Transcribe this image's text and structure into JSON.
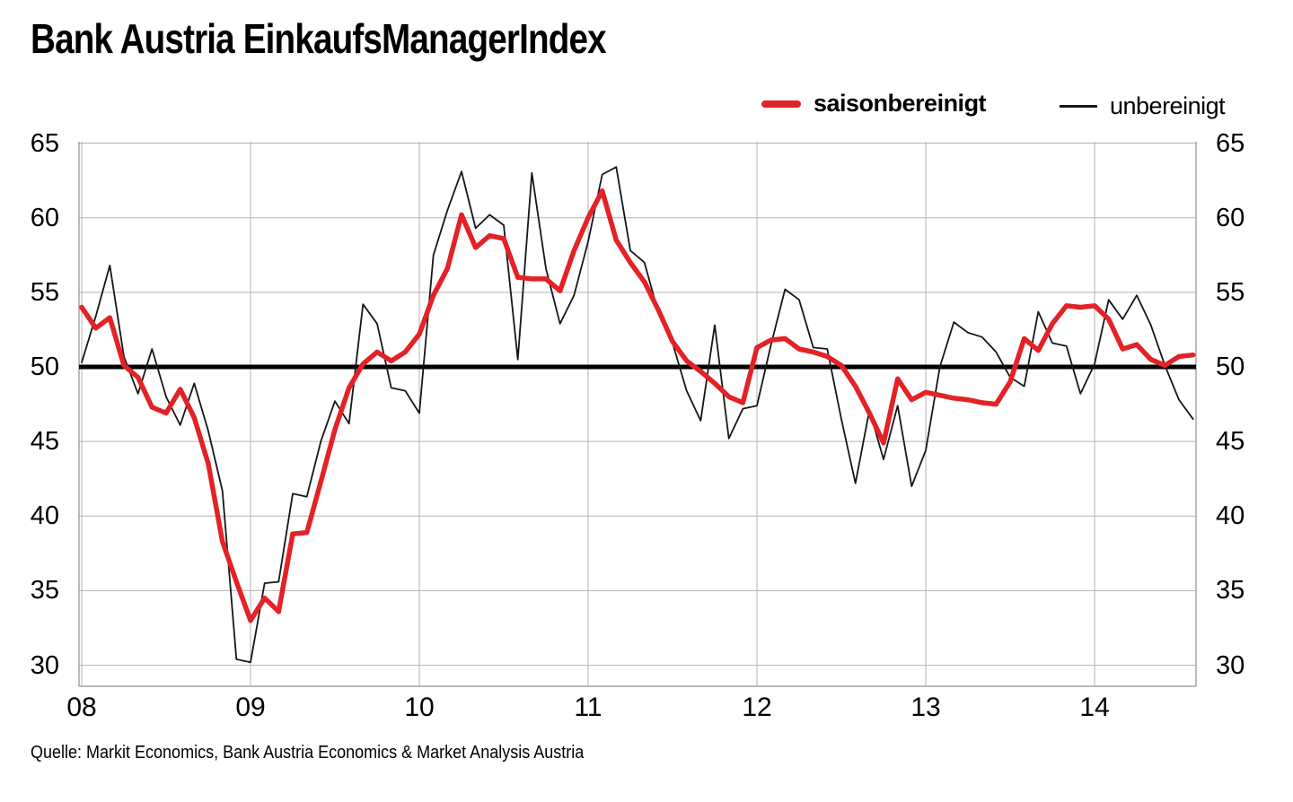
{
  "title": "Bank Austria EinkaufsManagerIndex",
  "legend": {
    "series1_label": "saisonbereinigt",
    "series2_label": "unbereinigt"
  },
  "source": "Quelle: Markit Economics, Bank Austria Economics & Market Analysis Austria",
  "colors": {
    "seasonally_adjusted": "#e32228",
    "unadjusted": "#161616",
    "gridline": "#b3b3b3",
    "axis": "#8f8f8f",
    "threshold": "#000000",
    "text": "#000000"
  },
  "chart_data": {
    "type": "line",
    "title": "Bank Austria EinkaufsManagerIndex",
    "xlabel": "",
    "ylabel": "",
    "x_start": "2008-01",
    "x_end": "2014-08",
    "months_per_year": 12,
    "xtick_labels": [
      "08",
      "09",
      "10",
      "11",
      "12",
      "13",
      "14"
    ],
    "yticks": [
      65,
      60,
      55,
      50,
      45,
      40,
      35,
      30
    ],
    "ylim": [
      30,
      65
    ],
    "threshold_line": 50,
    "grid": true,
    "legend_position": "top-right",
    "series": [
      {
        "name": "saisonbereinigt",
        "color": "#e32228",
        "stroke_width": 5.5,
        "values": [
          54.0,
          52.6,
          53.3,
          50.1,
          49.3,
          47.3,
          46.9,
          48.5,
          46.6,
          43.5,
          38.3,
          35.6,
          33.0,
          34.5,
          33.6,
          38.8,
          38.9,
          42.3,
          45.8,
          48.6,
          50.2,
          51.0,
          50.4,
          51.0,
          52.2,
          54.8,
          56.6,
          60.2,
          58.0,
          58.8,
          58.6,
          56.0,
          55.9,
          55.9,
          55.1,
          57.8,
          60.0,
          61.8,
          58.5,
          57.0,
          55.7,
          53.8,
          51.7,
          50.4,
          49.7,
          48.9,
          48.0,
          47.6,
          51.3,
          51.8,
          51.9,
          51.2,
          51.0,
          50.7,
          50.1,
          48.7,
          46.9,
          44.9,
          49.2,
          47.8,
          48.3,
          48.1,
          47.9,
          47.8,
          47.6,
          47.5,
          49.0,
          51.9,
          51.1,
          52.9,
          54.1,
          54.0,
          54.1,
          53.2,
          51.2,
          51.5,
          50.5,
          50.1,
          50.7,
          50.8
        ]
      },
      {
        "name": "unbereinigt",
        "color": "#161616",
        "stroke_width": 1.8,
        "values": [
          50.3,
          53.4,
          56.8,
          50.7,
          48.2,
          51.2,
          48.0,
          46.1,
          48.9,
          45.7,
          41.7,
          30.4,
          30.2,
          35.5,
          35.6,
          41.5,
          41.3,
          45.0,
          47.7,
          46.2,
          54.2,
          52.9,
          48.6,
          48.4,
          46.9,
          57.5,
          60.5,
          63.1,
          59.3,
          60.2,
          59.5,
          50.5,
          63.0,
          56.6,
          52.9,
          54.8,
          58.4,
          62.9,
          63.4,
          57.8,
          57.0,
          53.6,
          51.6,
          48.4,
          46.4,
          52.8,
          45.2,
          47.2,
          47.4,
          51.5,
          55.2,
          54.5,
          51.3,
          51.2,
          46.5,
          42.2,
          47.1,
          43.8,
          47.4,
          42.0,
          44.4,
          50.0,
          53.0,
          52.3,
          52.0,
          51.0,
          49.3,
          48.7,
          53.7,
          51.6,
          51.4,
          48.2,
          50.2,
          54.5,
          53.2,
          54.8,
          52.8,
          50.1,
          47.8,
          46.5
        ]
      }
    ]
  }
}
